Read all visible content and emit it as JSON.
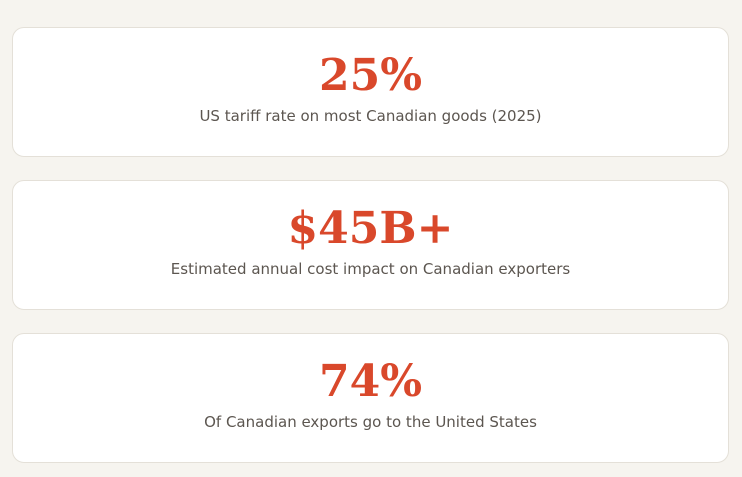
{
  "stats": [
    {
      "value": "25%",
      "label": "US tariff rate on most Canadian goods (2025)"
    },
    {
      "value": "$45B+",
      "label": "Estimated annual cost impact on Canadian exporters"
    },
    {
      "value": "74%",
      "label": "Of Canadian exports go to the United States"
    }
  ]
}
